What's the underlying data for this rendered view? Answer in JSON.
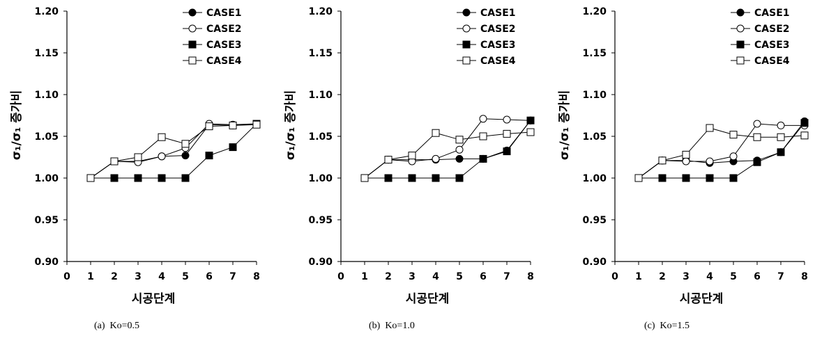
{
  "chart_data": [
    {
      "type": "line",
      "caption": "(a)  Ko=0.5",
      "xlabel": "시공단계",
      "ylabel": "σ₁/σ₁ 증가비",
      "xlim": [
        0,
        8
      ],
      "ylim": [
        0.9,
        1.2
      ],
      "x_ticks": [
        "0",
        "1",
        "2",
        "3",
        "4",
        "5",
        "6",
        "7",
        "8"
      ],
      "y_ticks": [
        "0.90",
        "0.95",
        "1.00",
        "1.05",
        "1.10",
        "1.15",
        "1.20"
      ],
      "legend_position": "top-right",
      "x": [
        1,
        2,
        3,
        4,
        5,
        6,
        7,
        8
      ],
      "series": [
        {
          "name": "CASE1",
          "marker": "circle-filled",
          "values": [
            1.0,
            1.02,
            1.02,
            1.026,
            1.027,
            1.064,
            1.063,
            1.065
          ]
        },
        {
          "name": "CASE2",
          "marker": "circle-open",
          "values": [
            1.0,
            1.02,
            1.019,
            1.026,
            1.036,
            1.065,
            1.064,
            1.065
          ]
        },
        {
          "name": "CASE3",
          "marker": "square-filled",
          "values": [
            1.0,
            1.0,
            1.0,
            1.0,
            1.0,
            1.027,
            1.037,
            1.065
          ]
        },
        {
          "name": "CASE4",
          "marker": "square-open",
          "values": [
            1.0,
            1.02,
            1.025,
            1.049,
            1.041,
            1.062,
            1.063,
            1.064
          ]
        }
      ]
    },
    {
      "type": "line",
      "caption": "(b)  Ko=1.0",
      "xlabel": "시공단계",
      "ylabel": "σ₁/σ₁ 증가비",
      "xlim": [
        0,
        8
      ],
      "ylim": [
        0.9,
        1.2
      ],
      "x_ticks": [
        "0",
        "1",
        "2",
        "3",
        "4",
        "5",
        "6",
        "7",
        "8"
      ],
      "y_ticks": [
        "0.90",
        "0.95",
        "1.00",
        "1.05",
        "1.10",
        "1.15",
        "1.20"
      ],
      "legend_position": "top-right",
      "x": [
        1,
        2,
        3,
        4,
        5,
        6,
        7,
        8
      ],
      "series": [
        {
          "name": "CASE1",
          "marker": "circle-filled",
          "values": [
            1.0,
            1.022,
            1.022,
            1.022,
            1.023,
            1.023,
            1.033,
            1.069
          ]
        },
        {
          "name": "CASE2",
          "marker": "circle-open",
          "values": [
            1.0,
            1.022,
            1.02,
            1.023,
            1.034,
            1.071,
            1.07,
            1.069
          ]
        },
        {
          "name": "CASE3",
          "marker": "square-filled",
          "values": [
            1.0,
            1.0,
            1.0,
            1.0,
            1.0,
            1.023,
            1.032,
            1.069
          ]
        },
        {
          "name": "CASE4",
          "marker": "square-open",
          "values": [
            1.0,
            1.022,
            1.027,
            1.054,
            1.046,
            1.05,
            1.053,
            1.055
          ]
        }
      ]
    },
    {
      "type": "line",
      "caption": "(c)  Ko=1.5",
      "xlabel": "시공단계",
      "ylabel": "σ₁/σ₁ 증가비",
      "xlim": [
        0,
        8
      ],
      "ylim": [
        0.9,
        1.2
      ],
      "x_ticks": [
        "0",
        "1",
        "2",
        "3",
        "4",
        "5",
        "6",
        "7",
        "8"
      ],
      "y_ticks": [
        "0.90",
        "0.95",
        "1.00",
        "1.05",
        "1.10",
        "1.15",
        "1.20"
      ],
      "legend_position": "top-right",
      "x": [
        1,
        2,
        3,
        4,
        5,
        6,
        7,
        8
      ],
      "series": [
        {
          "name": "CASE1",
          "marker": "circle-filled",
          "values": [
            1.0,
            1.021,
            1.021,
            1.018,
            1.02,
            1.021,
            1.031,
            1.068
          ]
        },
        {
          "name": "CASE2",
          "marker": "circle-open",
          "values": [
            1.0,
            1.021,
            1.02,
            1.02,
            1.026,
            1.065,
            1.063,
            1.063
          ]
        },
        {
          "name": "CASE3",
          "marker": "square-filled",
          "values": [
            1.0,
            1.0,
            1.0,
            1.0,
            1.0,
            1.019,
            1.031,
            1.066
          ]
        },
        {
          "name": "CASE4",
          "marker": "square-open",
          "values": [
            1.0,
            1.021,
            1.028,
            1.06,
            1.052,
            1.049,
            1.049,
            1.051
          ]
        }
      ]
    }
  ]
}
